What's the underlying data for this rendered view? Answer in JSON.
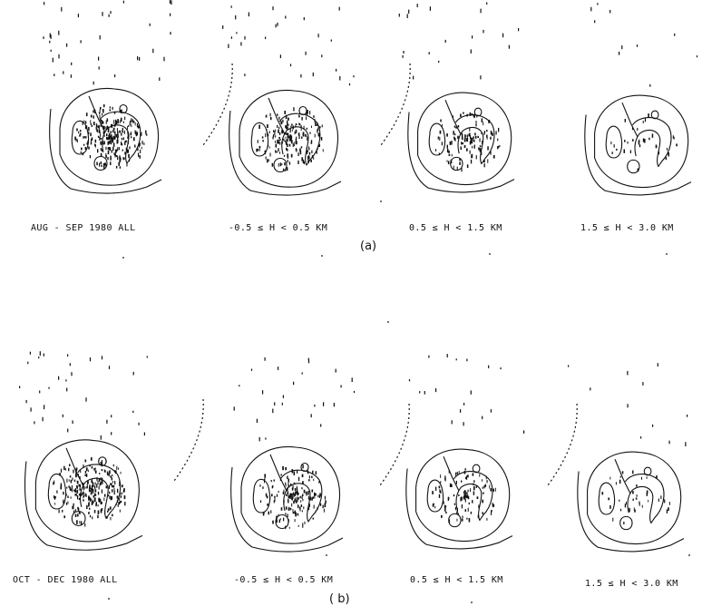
{
  "figure": {
    "row_a": {
      "tag": "(a)",
      "panels": [
        "AUG - SEP 1980 ALL",
        "-0.5 ≤ H < 0.5 KM",
        "0.5 ≤ H < 1.5 KM",
        "1.5 ≤ H < 3.0 KM"
      ],
      "density": [
        1.0,
        0.75,
        0.45,
        0.12
      ]
    },
    "row_b": {
      "tag": "( b)",
      "panels": [
        "OCT - DEC 1980 ALL",
        "-0.5 ≤ H < 0.5 KM",
        "0.5 ≤ H < 1.5 KM",
        "1.5 ≤ H < 3.0 KM"
      ],
      "density": [
        0.95,
        0.65,
        0.4,
        0.15
      ]
    },
    "ink_color": "#111111"
  }
}
